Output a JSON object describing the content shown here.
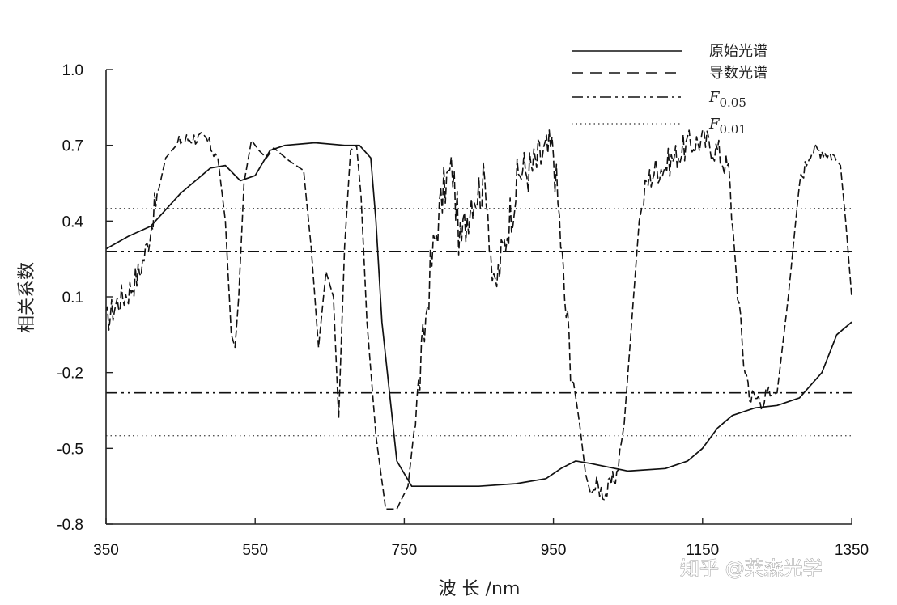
{
  "chart_data": {
    "type": "line",
    "title": "",
    "xlabel": "波 长 /nm",
    "ylabel": "相关系数",
    "xlim": [
      350,
      1350
    ],
    "ylim": [
      -0.8,
      1.0
    ],
    "x_ticks": [
      "350",
      "550",
      "750",
      "950",
      "1150",
      "1350"
    ],
    "y_ticks": [
      "1.0",
      "0.7",
      "0.4",
      "0.1",
      "-0.2",
      "-0.5",
      "-0.8"
    ],
    "x_tick_values": [
      350,
      550,
      750,
      950,
      1150,
      1350
    ],
    "y_tick_values": [
      1.0,
      0.7,
      0.4,
      0.1,
      -0.2,
      -0.5,
      -0.8
    ],
    "legend_position": "top-right",
    "grid": false,
    "series": [
      {
        "name": "原始光谱",
        "style": "solid",
        "x": [
          350,
          380,
          410,
          450,
          490,
          510,
          530,
          550,
          570,
          590,
          630,
          670,
          690,
          705,
          712,
          720,
          740,
          760,
          780,
          850,
          900,
          940,
          960,
          980,
          1000,
          1050,
          1100,
          1130,
          1150,
          1170,
          1190,
          1220,
          1250,
          1280,
          1310,
          1330,
          1350
        ],
        "y": [
          0.29,
          0.34,
          0.38,
          0.51,
          0.61,
          0.62,
          0.56,
          0.58,
          0.68,
          0.7,
          0.71,
          0.7,
          0.7,
          0.65,
          0.4,
          0.0,
          -0.55,
          -0.65,
          -0.65,
          -0.65,
          -0.64,
          -0.62,
          -0.58,
          -0.55,
          -0.56,
          -0.59,
          -0.58,
          -0.55,
          -0.5,
          -0.42,
          -0.37,
          -0.34,
          -0.33,
          -0.3,
          -0.2,
          -0.05,
          0.0
        ]
      },
      {
        "name": "导数光谱",
        "style": "dashed",
        "x": [
          350,
          365,
          380,
          395,
          405,
          415,
          430,
          450,
          470,
          485,
          500,
          510,
          518,
          523,
          528,
          535,
          545,
          555,
          565,
          575,
          595,
          615,
          625,
          635,
          645,
          655,
          662,
          670,
          678,
          686,
          692,
          700,
          712,
          725,
          740,
          755,
          765,
          775,
          785,
          795,
          805,
          815,
          825,
          840,
          860,
          870,
          890,
          905,
          920,
          935,
          950,
          958,
          965,
          975,
          985,
          993,
          1000,
          1008,
          1020,
          1035,
          1045,
          1055,
          1065,
          1075,
          1085,
          1100,
          1130,
          1150,
          1170,
          1185,
          1195,
          1205,
          1215,
          1235,
          1250,
          1265,
          1280,
          1295,
          1310,
          1325,
          1335,
          1342,
          1350
        ],
        "y": [
          0.0,
          0.08,
          0.12,
          0.2,
          0.3,
          0.45,
          0.65,
          0.72,
          0.73,
          0.72,
          0.65,
          0.4,
          -0.05,
          -0.1,
          0.1,
          0.55,
          0.72,
          0.68,
          0.65,
          0.69,
          0.64,
          0.6,
          0.3,
          -0.1,
          0.2,
          0.1,
          -0.38,
          0.3,
          0.68,
          0.7,
          0.5,
          0.0,
          -0.45,
          -0.74,
          -0.74,
          -0.65,
          -0.38,
          -0.1,
          0.2,
          0.4,
          0.55,
          0.6,
          0.3,
          0.5,
          0.55,
          0.1,
          0.4,
          0.6,
          0.6,
          0.66,
          0.68,
          0.4,
          0.1,
          -0.2,
          -0.4,
          -0.6,
          -0.68,
          -0.65,
          -0.68,
          -0.6,
          -0.4,
          0.0,
          0.4,
          0.55,
          0.6,
          0.62,
          0.7,
          0.72,
          0.68,
          0.6,
          0.2,
          -0.15,
          -0.3,
          -0.3,
          -0.28,
          0.1,
          0.55,
          0.68,
          0.68,
          0.66,
          0.62,
          0.4,
          0.1
        ]
      },
      {
        "name": "F0.05",
        "name_main": "F",
        "name_sub": "0.05",
        "style": "dashdotdot",
        "values": [
          0.28,
          -0.28
        ]
      },
      {
        "name": "F0.01",
        "name_main": "F",
        "name_sub": "0.01",
        "style": "dotted",
        "values": [
          0.45,
          -0.45
        ]
      }
    ]
  },
  "watermark": "知乎 @莱森光学"
}
